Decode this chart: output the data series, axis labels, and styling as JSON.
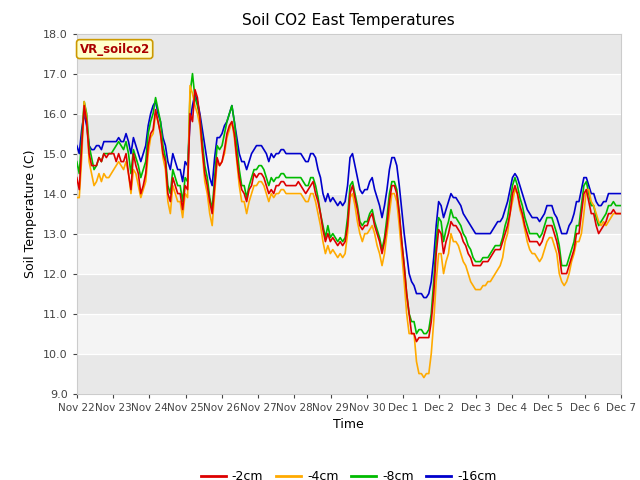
{
  "title": "Soil CO2 East Temperatures",
  "xlabel": "Time",
  "ylabel": "Soil Temperature (C)",
  "ylim": [
    9.0,
    18.0
  ],
  "yticks": [
    9.0,
    10.0,
    11.0,
    12.0,
    13.0,
    14.0,
    15.0,
    16.0,
    17.0,
    18.0
  ],
  "xtick_labels": [
    "Nov 22",
    "Nov 23",
    "Nov 24",
    "Nov 25",
    "Nov 26",
    "Nov 27",
    "Nov 28",
    "Nov 29",
    "Nov 30",
    "Dec 1",
    "Dec 2",
    "Dec 3",
    "Dec 4",
    "Dec 5",
    "Dec 6",
    "Dec 7"
  ],
  "colors": {
    "-2cm": "#dd0000",
    "-4cm": "#ffaa00",
    "-8cm": "#00bb00",
    "-16cm": "#0000cc"
  },
  "legend_label": "VR_soilco2",
  "fig_bg": "#ffffff",
  "plot_bg_light": "#ebebeb",
  "plot_bg_dark": "#d8d8d8",
  "series": {
    "-2cm": [
      14.4,
      14.1,
      15.2,
      16.2,
      15.8,
      15.0,
      14.7,
      14.7,
      14.7,
      14.9,
      14.8,
      15.0,
      14.9,
      15.0,
      15.0,
      15.0,
      14.8,
      15.0,
      14.8,
      14.8,
      15.0,
      14.5,
      14.1,
      15.0,
      14.7,
      14.5,
      14.0,
      14.2,
      14.5,
      15.2,
      15.5,
      15.6,
      16.1,
      15.8,
      15.5,
      15.0,
      14.8,
      14.0,
      13.8,
      14.4,
      14.2,
      14.0,
      14.0,
      13.6,
      14.2,
      14.1,
      16.0,
      15.8,
      16.6,
      16.4,
      15.9,
      15.1,
      14.5,
      14.2,
      13.8,
      13.5,
      14.2,
      14.9,
      14.7,
      14.8,
      15.1,
      15.5,
      15.7,
      15.8,
      15.5,
      14.9,
      14.4,
      14.1,
      14.0,
      13.8,
      14.1,
      14.2,
      14.5,
      14.4,
      14.5,
      14.5,
      14.4,
      14.2,
      14.0,
      14.1,
      14.0,
      14.2,
      14.2,
      14.3,
      14.3,
      14.2,
      14.2,
      14.2,
      14.2,
      14.2,
      14.3,
      14.2,
      14.1,
      14.0,
      14.1,
      14.2,
      14.3,
      14.0,
      13.8,
      13.5,
      13.1,
      12.8,
      13.0,
      12.8,
      12.9,
      12.8,
      12.7,
      12.8,
      12.7,
      12.8,
      13.2,
      14.0,
      14.2,
      13.9,
      13.6,
      13.2,
      13.1,
      13.2,
      13.2,
      13.4,
      13.5,
      13.2,
      13.0,
      12.8,
      12.5,
      12.8,
      13.2,
      13.8,
      14.2,
      14.2,
      14.0,
      13.5,
      12.8,
      12.2,
      11.5,
      11.0,
      10.5,
      10.5,
      10.3,
      10.4,
      10.4,
      10.4,
      10.4,
      10.4,
      10.8,
      11.5,
      12.5,
      13.1,
      13.0,
      12.5,
      12.8,
      13.0,
      13.3,
      13.2,
      13.2,
      13.1,
      13.0,
      12.8,
      12.7,
      12.5,
      12.4,
      12.2,
      12.2,
      12.2,
      12.2,
      12.3,
      12.3,
      12.3,
      12.4,
      12.5,
      12.6,
      12.6,
      12.6,
      12.8,
      13.0,
      13.2,
      13.5,
      14.0,
      14.2,
      14.0,
      13.7,
      13.5,
      13.2,
      13.0,
      12.8,
      12.8,
      12.8,
      12.8,
      12.7,
      12.8,
      13.0,
      13.2,
      13.2,
      13.2,
      13.0,
      12.8,
      12.5,
      12.0,
      12.0,
      12.0,
      12.2,
      12.4,
      12.6,
      13.0,
      13.0,
      13.5,
      14.0,
      14.1,
      13.8,
      13.5,
      13.5,
      13.2,
      13.0,
      13.1,
      13.2,
      13.3,
      13.5,
      13.5,
      13.6,
      13.5,
      13.5,
      13.5
    ],
    "-4cm": [
      13.9,
      13.9,
      14.9,
      16.3,
      15.9,
      14.8,
      14.5,
      14.2,
      14.3,
      14.5,
      14.3,
      14.5,
      14.4,
      14.4,
      14.5,
      14.6,
      14.7,
      14.8,
      14.7,
      14.6,
      14.8,
      14.5,
      14.0,
      14.6,
      14.5,
      14.2,
      13.9,
      14.1,
      14.3,
      15.0,
      15.4,
      15.5,
      16.0,
      15.8,
      15.5,
      14.9,
      14.6,
      13.8,
      13.5,
      14.2,
      14.0,
      13.8,
      13.8,
      13.4,
      14.0,
      13.9,
      16.7,
      16.5,
      16.2,
      16.0,
      15.7,
      15.0,
      14.3,
      14.0,
      13.5,
      13.2,
      14.0,
      14.8,
      14.7,
      14.8,
      15.0,
      15.4,
      15.6,
      15.8,
      15.4,
      14.8,
      14.2,
      13.8,
      13.8,
      13.5,
      13.8,
      14.0,
      14.2,
      14.2,
      14.3,
      14.3,
      14.2,
      14.0,
      13.8,
      14.0,
      13.9,
      14.0,
      14.0,
      14.1,
      14.1,
      14.0,
      14.0,
      14.0,
      14.0,
      14.0,
      14.0,
      14.0,
      13.9,
      13.8,
      13.8,
      14.0,
      14.0,
      13.8,
      13.5,
      13.2,
      12.8,
      12.5,
      12.7,
      12.5,
      12.6,
      12.5,
      12.4,
      12.5,
      12.4,
      12.5,
      13.0,
      13.9,
      14.0,
      13.7,
      13.3,
      13.0,
      12.8,
      13.0,
      13.0,
      13.1,
      13.2,
      13.0,
      12.7,
      12.5,
      12.2,
      12.5,
      13.0,
      13.5,
      14.0,
      14.0,
      13.8,
      13.2,
      12.5,
      11.8,
      11.0,
      10.5,
      10.5,
      10.5,
      9.8,
      9.5,
      9.5,
      9.4,
      9.5,
      9.5,
      10.0,
      10.8,
      11.8,
      12.5,
      12.5,
      12.0,
      12.3,
      12.5,
      13.0,
      12.8,
      12.8,
      12.7,
      12.5,
      12.3,
      12.2,
      12.0,
      11.8,
      11.7,
      11.6,
      11.6,
      11.6,
      11.7,
      11.7,
      11.8,
      11.8,
      11.9,
      12.0,
      12.1,
      12.2,
      12.4,
      12.8,
      13.0,
      13.5,
      13.8,
      14.1,
      14.0,
      13.6,
      13.4,
      13.1,
      12.8,
      12.6,
      12.5,
      12.5,
      12.4,
      12.3,
      12.4,
      12.6,
      12.8,
      12.9,
      12.9,
      12.7,
      12.5,
      12.0,
      11.8,
      11.7,
      11.8,
      12.0,
      12.3,
      12.5,
      12.8,
      12.8,
      13.0,
      13.5,
      14.1,
      14.1,
      13.8,
      13.7,
      13.5,
      13.3,
      13.2,
      13.3,
      13.2,
      13.3,
      13.4,
      13.5,
      13.5,
      13.5,
      13.5
    ],
    "-8cm": [
      14.8,
      14.5,
      15.4,
      16.3,
      16.0,
      15.2,
      14.9,
      14.6,
      14.7,
      14.9,
      14.8,
      15.0,
      15.0,
      15.0,
      15.0,
      15.1,
      15.2,
      15.3,
      15.2,
      15.1,
      15.3,
      15.0,
      14.5,
      15.1,
      14.9,
      14.7,
      14.4,
      14.6,
      14.8,
      15.5,
      15.8,
      16.0,
      16.4,
      16.1,
      15.8,
      15.2,
      14.9,
      14.2,
      14.0,
      14.6,
      14.4,
      14.2,
      14.2,
      13.8,
      14.4,
      14.3,
      16.5,
      17.0,
      16.4,
      16.2,
      15.9,
      15.3,
      14.7,
      14.4,
      13.9,
      13.6,
      14.4,
      15.2,
      15.1,
      15.2,
      15.5,
      15.8,
      16.0,
      16.2,
      15.8,
      15.2,
      14.6,
      14.2,
      14.2,
      13.9,
      14.2,
      14.4,
      14.6,
      14.6,
      14.7,
      14.7,
      14.6,
      14.4,
      14.2,
      14.4,
      14.3,
      14.4,
      14.4,
      14.5,
      14.5,
      14.4,
      14.4,
      14.4,
      14.4,
      14.4,
      14.4,
      14.4,
      14.3,
      14.2,
      14.2,
      14.4,
      14.4,
      14.2,
      13.9,
      13.5,
      13.2,
      12.9,
      13.2,
      12.9,
      13.0,
      12.9,
      12.8,
      12.9,
      12.8,
      12.9,
      13.4,
      14.2,
      14.3,
      14.0,
      13.7,
      13.3,
      13.2,
      13.3,
      13.3,
      13.5,
      13.6,
      13.3,
      13.1,
      12.9,
      12.6,
      12.9,
      13.4,
      14.0,
      14.3,
      14.3,
      14.1,
      13.5,
      12.8,
      12.2,
      11.5,
      11.0,
      10.8,
      10.8,
      10.5,
      10.6,
      10.6,
      10.5,
      10.5,
      10.6,
      11.0,
      11.8,
      12.8,
      13.4,
      13.3,
      12.8,
      13.1,
      13.3,
      13.6,
      13.4,
      13.4,
      13.3,
      13.2,
      13.0,
      12.9,
      12.7,
      12.6,
      12.4,
      12.3,
      12.3,
      12.3,
      12.4,
      12.4,
      12.4,
      12.5,
      12.6,
      12.7,
      12.7,
      12.7,
      12.9,
      13.2,
      13.4,
      13.8,
      14.2,
      14.4,
      14.2,
      13.9,
      13.7,
      13.4,
      13.2,
      13.0,
      13.0,
      13.0,
      13.0,
      12.9,
      13.0,
      13.2,
      13.4,
      13.4,
      13.4,
      13.2,
      13.0,
      12.7,
      12.2,
      12.2,
      12.2,
      12.4,
      12.6,
      12.8,
      13.2,
      13.2,
      13.7,
      14.2,
      14.3,
      14.0,
      13.7,
      13.7,
      13.4,
      13.2,
      13.3,
      13.4,
      13.5,
      13.7,
      13.7,
      13.8,
      13.7,
      13.7,
      13.7
    ],
    "-16cm": [
      15.2,
      15.0,
      15.6,
      16.0,
      15.7,
      15.2,
      15.1,
      15.1,
      15.2,
      15.2,
      15.1,
      15.3,
      15.3,
      15.3,
      15.3,
      15.3,
      15.3,
      15.4,
      15.3,
      15.3,
      15.5,
      15.3,
      15.0,
      15.4,
      15.2,
      15.0,
      14.8,
      15.0,
      15.2,
      15.7,
      16.0,
      16.2,
      16.3,
      16.0,
      15.8,
      15.4,
      15.2,
      14.8,
      14.6,
      15.0,
      14.8,
      14.6,
      14.6,
      14.3,
      14.8,
      14.7,
      15.8,
      16.2,
      16.5,
      16.3,
      16.0,
      15.6,
      15.2,
      14.8,
      14.4,
      14.2,
      14.9,
      15.4,
      15.4,
      15.5,
      15.7,
      15.8,
      16.0,
      16.2,
      15.8,
      15.4,
      15.0,
      14.8,
      14.8,
      14.6,
      14.8,
      15.0,
      15.1,
      15.2,
      15.2,
      15.2,
      15.1,
      15.0,
      14.8,
      15.0,
      14.9,
      15.0,
      15.0,
      15.1,
      15.1,
      15.0,
      15.0,
      15.0,
      15.0,
      15.0,
      15.0,
      15.0,
      14.9,
      14.8,
      14.8,
      15.0,
      15.0,
      14.9,
      14.6,
      14.4,
      14.0,
      13.8,
      14.0,
      13.8,
      13.9,
      13.8,
      13.7,
      13.8,
      13.7,
      13.8,
      14.2,
      14.9,
      15.0,
      14.7,
      14.4,
      14.1,
      14.0,
      14.1,
      14.1,
      14.3,
      14.4,
      14.1,
      13.9,
      13.7,
      13.4,
      13.7,
      14.1,
      14.6,
      14.9,
      14.9,
      14.7,
      14.2,
      13.6,
      13.0,
      12.5,
      12.0,
      11.8,
      11.7,
      11.5,
      11.5,
      11.5,
      11.4,
      11.4,
      11.5,
      11.8,
      12.4,
      13.2,
      13.8,
      13.7,
      13.4,
      13.6,
      13.8,
      14.0,
      13.9,
      13.9,
      13.8,
      13.7,
      13.5,
      13.4,
      13.3,
      13.2,
      13.1,
      13.0,
      13.0,
      13.0,
      13.0,
      13.0,
      13.0,
      13.0,
      13.1,
      13.2,
      13.3,
      13.3,
      13.4,
      13.6,
      13.8,
      14.1,
      14.4,
      14.5,
      14.4,
      14.2,
      14.0,
      13.8,
      13.6,
      13.5,
      13.4,
      13.4,
      13.4,
      13.3,
      13.4,
      13.5,
      13.7,
      13.7,
      13.7,
      13.5,
      13.4,
      13.2,
      13.0,
      13.0,
      13.0,
      13.2,
      13.3,
      13.5,
      13.8,
      13.8,
      14.1,
      14.4,
      14.4,
      14.2,
      14.0,
      14.0,
      13.8,
      13.7,
      13.7,
      13.8,
      13.8,
      14.0,
      14.0,
      14.0,
      14.0,
      14.0,
      14.0
    ]
  }
}
